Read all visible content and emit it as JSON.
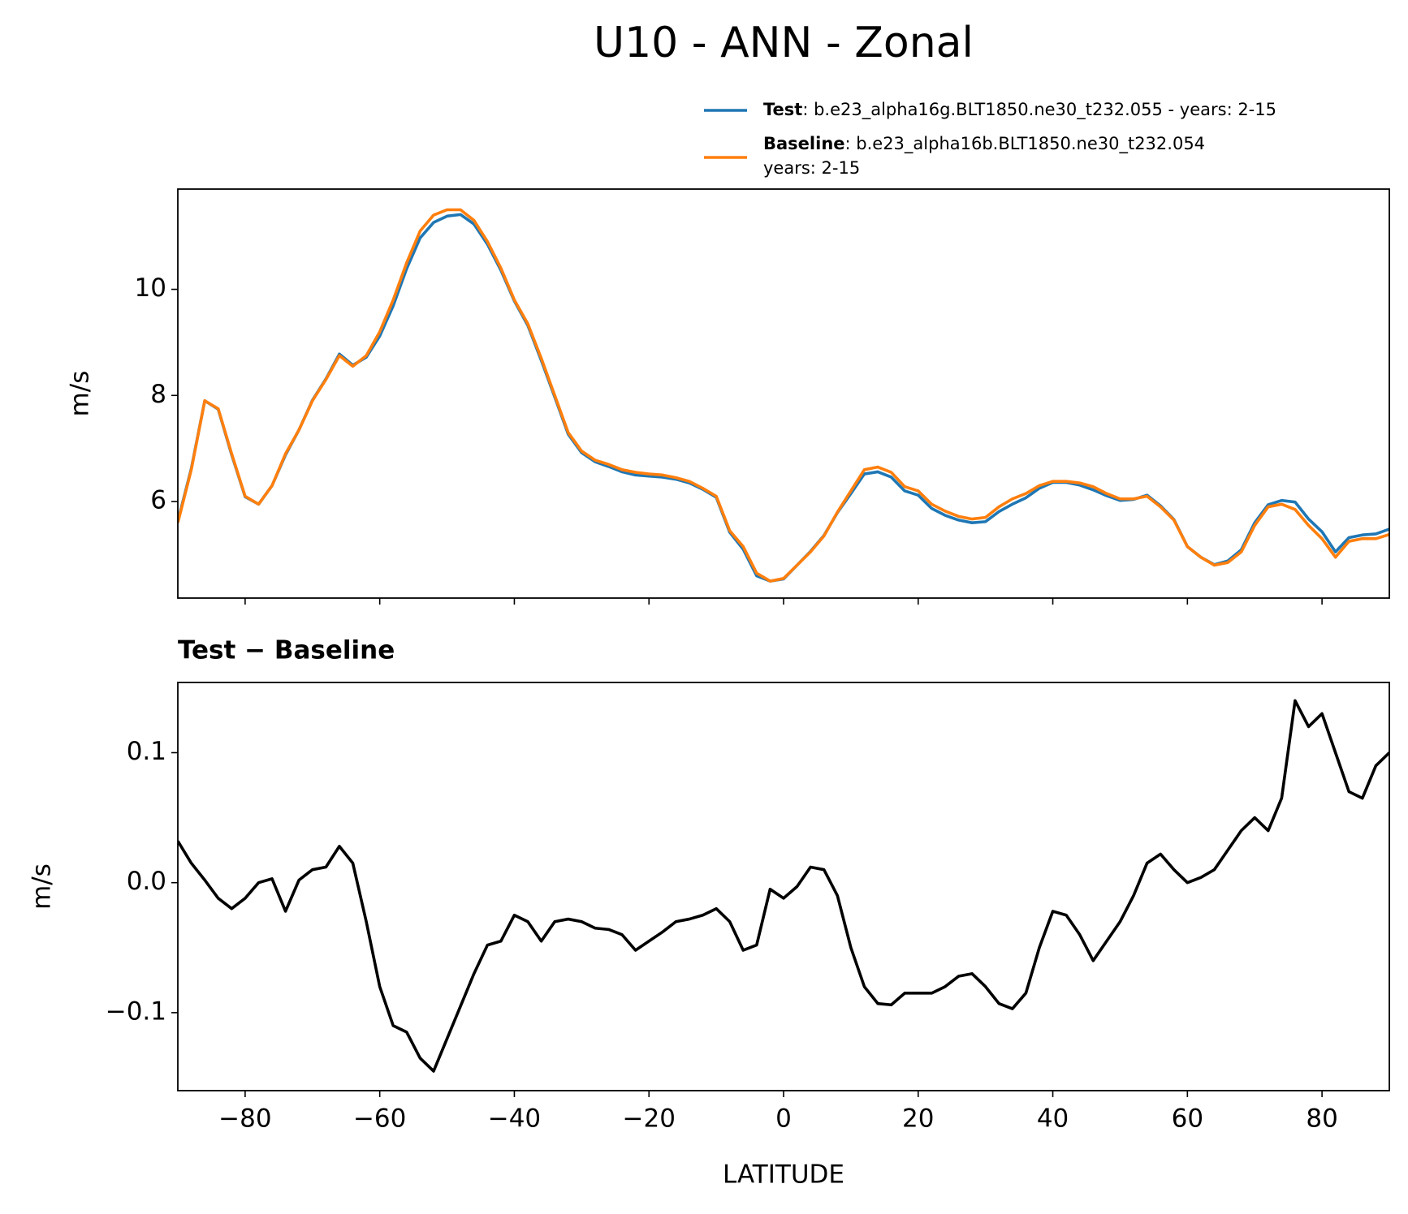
{
  "chart_data": [
    {
      "type": "line",
      "title": "U10 - ANN - Zonal",
      "ylabel": "m/s",
      "x": [
        -90,
        -88,
        -86,
        -84,
        -82,
        -80,
        -78,
        -76,
        -74,
        -72,
        -70,
        -68,
        -66,
        -64,
        -62,
        -60,
        -58,
        -56,
        -54,
        -52,
        -50,
        -48,
        -46,
        -44,
        -42,
        -40,
        -38,
        -36,
        -34,
        -32,
        -30,
        -28,
        -26,
        -24,
        -22,
        -20,
        -18,
        -16,
        -14,
        -12,
        -10,
        -8,
        -6,
        -4,
        -2,
        0,
        2,
        4,
        6,
        8,
        10,
        12,
        14,
        16,
        18,
        20,
        22,
        24,
        26,
        28,
        30,
        32,
        34,
        36,
        38,
        40,
        42,
        44,
        46,
        48,
        50,
        52,
        54,
        56,
        58,
        60,
        62,
        64,
        66,
        68,
        70,
        72,
        74,
        76,
        78,
        80,
        82,
        84,
        86,
        88,
        90
      ],
      "series": [
        {
          "name": "Test",
          "legend_text": [
            ": b.e23_alpha16g.BLT1850.ne30_t232.055 - years: 2-15"
          ],
          "color": "#1f77b4",
          "values": [
            5.63,
            6.62,
            7.9,
            7.74,
            6.88,
            6.09,
            5.95,
            6.3,
            6.88,
            7.35,
            7.91,
            8.31,
            8.78,
            8.57,
            8.72,
            9.12,
            9.69,
            10.39,
            10.97,
            11.26,
            11.38,
            11.41,
            11.23,
            10.85,
            10.36,
            9.78,
            9.32,
            8.66,
            7.97,
            7.27,
            6.92,
            6.75,
            6.66,
            6.56,
            6.5,
            6.48,
            6.46,
            6.42,
            6.35,
            6.23,
            6.08,
            5.42,
            5.1,
            4.6,
            4.5,
            4.54,
            4.8,
            5.06,
            5.36,
            5.79,
            6.15,
            6.52,
            6.56,
            6.46,
            6.2,
            6.12,
            5.87,
            5.74,
            5.65,
            5.6,
            5.62,
            5.81,
            5.95,
            6.07,
            6.25,
            6.36,
            6.36,
            6.31,
            6.22,
            6.11,
            6.02,
            6.04,
            6.12,
            5.92,
            5.66,
            5.15,
            4.95,
            4.81,
            4.88,
            5.09,
            5.6,
            5.94,
            6.02,
            5.99,
            5.67,
            5.43,
            5.05,
            5.32,
            5.37,
            5.39,
            5.48
          ]
        },
        {
          "name": "Baseline",
          "legend_text": [
            ": b.e23_alpha16b.BLT1850.ne30_t232.054",
            "years: 2-15"
          ],
          "color": "#ff7f0e",
          "values": [
            5.6,
            6.6,
            7.9,
            7.75,
            6.9,
            6.1,
            5.95,
            6.3,
            6.9,
            7.35,
            7.9,
            8.3,
            8.75,
            8.55,
            8.75,
            9.2,
            9.8,
            10.5,
            11.1,
            11.4,
            11.5,
            11.5,
            11.3,
            10.9,
            10.4,
            9.8,
            9.35,
            8.7,
            8.0,
            7.3,
            6.95,
            6.78,
            6.7,
            6.6,
            6.55,
            6.52,
            6.5,
            6.45,
            6.38,
            6.25,
            6.1,
            5.45,
            5.15,
            4.65,
            4.5,
            4.55,
            4.8,
            5.05,
            5.35,
            5.8,
            6.2,
            6.6,
            6.65,
            6.55,
            6.28,
            6.2,
            5.95,
            5.82,
            5.72,
            5.67,
            5.7,
            5.9,
            6.05,
            6.15,
            6.3,
            6.38,
            6.38,
            6.35,
            6.28,
            6.15,
            6.05,
            6.05,
            6.1,
            5.9,
            5.65,
            5.15,
            4.95,
            4.8,
            4.85,
            5.05,
            5.55,
            5.9,
            5.95,
            5.85,
            5.55,
            5.3,
            4.95,
            5.25,
            5.3,
            5.3,
            5.38
          ]
        }
      ],
      "xlim": [
        -90,
        90
      ],
      "xticks": [
        -80,
        -60,
        -40,
        -20,
        0,
        20,
        40,
        60,
        80
      ],
      "ylim": [
        4.18,
        11.89
      ],
      "yticks": [
        6,
        8,
        10
      ]
    },
    {
      "type": "line",
      "title": "Test − Baseline",
      "ylabel": "m/s",
      "xlabel": "LATITUDE",
      "x": [
        -90,
        -88,
        -86,
        -84,
        -82,
        -80,
        -78,
        -76,
        -74,
        -72,
        -70,
        -68,
        -66,
        -64,
        -62,
        -60,
        -58,
        -56,
        -54,
        -52,
        -50,
        -48,
        -46,
        -44,
        -42,
        -40,
        -38,
        -36,
        -34,
        -32,
        -30,
        -28,
        -26,
        -24,
        -22,
        -20,
        -18,
        -16,
        -14,
        -12,
        -10,
        -8,
        -6,
        -4,
        -2,
        0,
        2,
        4,
        6,
        8,
        10,
        12,
        14,
        16,
        18,
        20,
        22,
        24,
        26,
        28,
        30,
        32,
        34,
        36,
        38,
        40,
        42,
        44,
        46,
        48,
        50,
        52,
        54,
        56,
        58,
        60,
        62,
        64,
        66,
        68,
        70,
        72,
        74,
        76,
        78,
        80,
        82,
        84,
        86,
        88,
        90
      ],
      "series": [
        {
          "color": "#000000",
          "values": [
            0.032,
            0.015,
            0.002,
            -0.012,
            -0.02,
            -0.012,
            0.0,
            0.003,
            -0.022,
            0.002,
            0.01,
            0.012,
            0.028,
            0.015,
            -0.03,
            -0.08,
            -0.11,
            -0.115,
            -0.135,
            -0.145,
            -0.12,
            -0.095,
            -0.07,
            -0.048,
            -0.045,
            -0.025,
            -0.03,
            -0.045,
            -0.03,
            -0.028,
            -0.03,
            -0.035,
            -0.036,
            -0.04,
            -0.052,
            -0.045,
            -0.038,
            -0.03,
            -0.028,
            -0.025,
            -0.02,
            -0.03,
            -0.052,
            -0.048,
            -0.005,
            -0.012,
            -0.003,
            0.012,
            0.01,
            -0.01,
            -0.05,
            -0.08,
            -0.093,
            -0.094,
            -0.085,
            -0.085,
            -0.085,
            -0.08,
            -0.072,
            -0.07,
            -0.08,
            -0.093,
            -0.097,
            -0.085,
            -0.05,
            -0.022,
            -0.025,
            -0.04,
            -0.06,
            -0.045,
            -0.03,
            -0.01,
            0.015,
            0.022,
            0.01,
            0.0,
            0.004,
            0.01,
            0.025,
            0.04,
            0.05,
            0.04,
            0.065,
            0.14,
            0.12,
            0.13,
            0.1,
            0.07,
            0.065,
            0.09,
            0.1
          ]
        }
      ],
      "xlim": [
        -90,
        90
      ],
      "xticks": [
        {
          "value": -80,
          "label": "−80"
        },
        {
          "value": -60,
          "label": "−60"
        },
        {
          "value": -40,
          "label": "−40"
        },
        {
          "value": -20,
          "label": "−20"
        },
        0,
        20,
        40,
        60,
        80
      ],
      "ylim": [
        -0.16,
        0.154
      ],
      "yticks": [
        {
          "value": -0.1,
          "label": "−0.1"
        },
        {
          "value": 0,
          "label": "0.0"
        },
        0.1
      ]
    }
  ]
}
